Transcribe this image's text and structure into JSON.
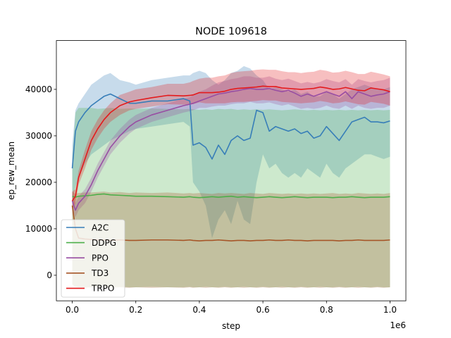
{
  "chart_data": {
    "type": "line",
    "title": "NODE 109618",
    "xlabel": "step",
    "ylabel": "ep_rew_mean",
    "x_offset_label": "1e6",
    "xlim": [
      -0.05,
      1.05
    ],
    "ylim": [
      -5500,
      50500
    ],
    "x_ticks": [
      0.0,
      0.2,
      0.4,
      0.6,
      0.8,
      1.0
    ],
    "x_tick_labels": [
      "0.0",
      "0.2",
      "0.4",
      "0.6",
      "0.8",
      "1.0"
    ],
    "y_ticks": [
      0,
      10000,
      20000,
      30000,
      40000
    ],
    "y_tick_labels": [
      "0",
      "10000",
      "20000",
      "30000",
      "40000"
    ],
    "grid": false,
    "legend_position": "lower-left",
    "x": [
      0.0,
      0.01,
      0.02,
      0.04,
      0.06,
      0.08,
      0.1,
      0.12,
      0.15,
      0.18,
      0.2,
      0.25,
      0.3,
      0.35,
      0.37,
      0.38,
      0.4,
      0.42,
      0.44,
      0.46,
      0.48,
      0.5,
      0.52,
      0.54,
      0.56,
      0.58,
      0.6,
      0.62,
      0.64,
      0.66,
      0.68,
      0.7,
      0.72,
      0.74,
      0.76,
      0.78,
      0.8,
      0.82,
      0.84,
      0.86,
      0.88,
      0.9,
      0.92,
      0.94,
      0.96,
      0.98,
      1.0
    ],
    "series": [
      {
        "name": "A2C",
        "color": "#377eb8",
        "values": [
          23000,
          31000,
          33000,
          35000,
          36500,
          37500,
          38500,
          39000,
          38000,
          37000,
          37000,
          37500,
          37500,
          38000,
          37500,
          28000,
          28500,
          27500,
          25000,
          28000,
          26000,
          29000,
          30000,
          29000,
          29500,
          35500,
          35000,
          31000,
          32000,
          31500,
          31000,
          31500,
          30500,
          31000,
          29500,
          30000,
          32000,
          30500,
          29000,
          31000,
          33000,
          33500,
          34000,
          33000,
          33000,
          32800,
          33200
        ],
        "lower": [
          16000,
          19000,
          21000,
          24000,
          26000,
          27000,
          28000,
          29000,
          30000,
          31000,
          31500,
          32000,
          32500,
          33000,
          32000,
          20000,
          18000,
          15000,
          8000,
          12000,
          14000,
          11000,
          16000,
          12000,
          11000,
          20000,
          26000,
          23000,
          24000,
          22000,
          21000,
          22000,
          21000,
          23000,
          22000,
          21000,
          24000,
          22000,
          21000,
          23000,
          24000,
          25000,
          26000,
          26000,
          25500,
          25000,
          25500
        ],
        "upper": [
          28000,
          35500,
          37000,
          39000,
          41000,
          42000,
          43000,
          43500,
          42000,
          41500,
          41000,
          42000,
          42500,
          43000,
          43000,
          43500,
          44000,
          43500,
          42000,
          41000,
          42000,
          43500,
          44000,
          45000,
          44500,
          43000,
          42000,
          40000,
          40500,
          40000,
          39500,
          40000,
          39000,
          39500,
          38500,
          38500,
          39500,
          39000,
          38000,
          39000,
          40000,
          40500,
          41000,
          40500,
          40000,
          40000,
          40500
        ]
      },
      {
        "name": "DDPG",
        "color": "#4daf4a",
        "values": [
          17000,
          16800,
          17000,
          17100,
          17200,
          17400,
          17500,
          17300,
          17200,
          17100,
          17000,
          17000,
          16900,
          16800,
          16900,
          16800,
          16700,
          16800,
          16900,
          16800,
          16900,
          17000,
          16800,
          16900,
          16800,
          16700,
          16800,
          16900,
          16800,
          16700,
          16800,
          16900,
          16800,
          16700,
          16800,
          16800,
          16800,
          16700,
          16800,
          16800,
          16900,
          16800,
          16700,
          16800,
          16800,
          16800,
          16900
        ],
        "lower": [
          -2000,
          -2500,
          -2600,
          -2600,
          -2600,
          -2500,
          -2600,
          -2600,
          -2500,
          -2600,
          -2600,
          -2500,
          -2600,
          -2600,
          -2500,
          -2600,
          -2600,
          -2500,
          -2600,
          -2600,
          -2500,
          -2600,
          -2600,
          -2500,
          -2600,
          -2600,
          -2500,
          -2600,
          -2600,
          -2500,
          -2600,
          -2600,
          -2500,
          -2600,
          -2600,
          -2500,
          -2600,
          -2600,
          -2500,
          -2600,
          -2600,
          -2500,
          -2600,
          -2600,
          -2500,
          -2600,
          -2600
        ],
        "upper": [
          25000,
          35000,
          36000,
          36000,
          36000,
          35800,
          35900,
          36000,
          35800,
          35900,
          35800,
          35900,
          35800,
          35700,
          35800,
          35700,
          35600,
          35700,
          35600,
          35800,
          35700,
          35800,
          35600,
          35700,
          35600,
          35700,
          35600,
          35700,
          35600,
          35500,
          35600,
          35700,
          35600,
          35500,
          35600,
          35500,
          35600,
          35500,
          35600,
          35500,
          35600,
          35500,
          35600,
          35500,
          35600,
          35500,
          35600
        ]
      },
      {
        "name": "PPO",
        "color": "#984ea3",
        "values": [
          16000,
          14000,
          15500,
          17000,
          19500,
          22500,
          25000,
          27500,
          30000,
          32000,
          33000,
          34500,
          35500,
          36500,
          36800,
          37000,
          37500,
          38000,
          38500,
          39000,
          39200,
          39500,
          39700,
          40000,
          40200,
          40000,
          40000,
          40200,
          39800,
          39500,
          39800,
          39200,
          38500,
          39000,
          38500,
          39000,
          39500,
          39000,
          38500,
          39500,
          38000,
          39500,
          39000,
          38500,
          38800,
          39000,
          39500
        ],
        "lower": [
          14000,
          12500,
          14000,
          15500,
          18000,
          21000,
          23500,
          26000,
          28500,
          30500,
          31500,
          33000,
          34000,
          35000,
          35300,
          35500,
          36000,
          36000,
          36300,
          36500,
          36500,
          36800,
          37000,
          37000,
          37300,
          37000,
          37000,
          37200,
          36800,
          36500,
          36800,
          36300,
          35800,
          36000,
          35800,
          36000,
          36500,
          36000,
          35800,
          36500,
          35800,
          36500,
          36000,
          35800,
          36000,
          36000,
          36500
        ],
        "upper": [
          18000,
          15500,
          17000,
          18500,
          21000,
          24000,
          26500,
          29000,
          31500,
          33500,
          34500,
          36000,
          37000,
          38000,
          38300,
          38800,
          39500,
          40000,
          40800,
          41500,
          41800,
          42200,
          42400,
          42800,
          42800,
          42500,
          42500,
          42800,
          42300,
          42000,
          42300,
          41800,
          41300,
          41600,
          41300,
          41600,
          42200,
          41800,
          41500,
          42200,
          41000,
          42200,
          41800,
          41500,
          41800,
          42000,
          42500
        ]
      },
      {
        "name": "TD3",
        "color": "#a65628",
        "values": [
          15000,
          10000,
          8000,
          7800,
          7700,
          7600,
          7600,
          7500,
          7600,
          7500,
          7500,
          7600,
          7600,
          7500,
          7600,
          7500,
          7400,
          7500,
          7500,
          7600,
          7500,
          7400,
          7500,
          7500,
          7400,
          7500,
          7500,
          7600,
          7500,
          7500,
          7600,
          7500,
          7500,
          7400,
          7500,
          7500,
          7500,
          7500,
          7400,
          7500,
          7500,
          7600,
          7500,
          7500,
          7500,
          7500,
          7600
        ],
        "lower": [
          -2000,
          -2500,
          -2600,
          -2700,
          -2600,
          -2700,
          -2600,
          -2700,
          -2600,
          -2700,
          -2600,
          -2700,
          -2600,
          -2700,
          -2600,
          -2700,
          -2600,
          -2700,
          -2600,
          -2700,
          -2600,
          -2700,
          -2600,
          -2700,
          -2600,
          -2700,
          -2600,
          -2700,
          -2600,
          -2700,
          -2600,
          -2700,
          -2600,
          -2700,
          -2600,
          -2700,
          -2600,
          -2700,
          -2600,
          -2700,
          -2600,
          -2700,
          -2600,
          -2700,
          -2600,
          -2700,
          -2600
        ],
        "upper": [
          18000,
          17500,
          17700,
          17800,
          17800,
          17900,
          18000,
          17800,
          17900,
          17700,
          17800,
          17700,
          17800,
          17600,
          17700,
          17600,
          17700,
          17600,
          17500,
          17700,
          17600,
          17700,
          17600,
          17500,
          17700,
          17600,
          17500,
          17700,
          17600,
          17500,
          17600,
          17500,
          17600,
          17500,
          17600,
          17500,
          17600,
          17700,
          17500,
          17600,
          17500,
          17700,
          17600,
          17500,
          17600,
          17500,
          17700
        ]
      },
      {
        "name": "TRPO",
        "color": "#e41a1c",
        "values": [
          16000,
          17000,
          21000,
          25000,
          29000,
          31500,
          33500,
          35000,
          36500,
          37300,
          37600,
          38200,
          38700,
          38600,
          38700,
          38800,
          39300,
          39300,
          39300,
          39400,
          39600,
          40000,
          40200,
          40300,
          40400,
          40500,
          40700,
          40600,
          40600,
          40300,
          40200,
          40100,
          40000,
          40100,
          40200,
          40500,
          40300,
          40000,
          40100,
          40400,
          40100,
          39800,
          39700,
          40300,
          40100,
          39900,
          39500
        ],
        "lower": [
          14000,
          15500,
          19500,
          23000,
          27000,
          29500,
          31500,
          33000,
          34500,
          35500,
          35800,
          36300,
          36800,
          36700,
          36800,
          36800,
          37200,
          37000,
          37000,
          37000,
          37000,
          37200,
          37300,
          37300,
          37400,
          37500,
          37700,
          37600,
          37600,
          37300,
          37200,
          37100,
          37000,
          37100,
          37200,
          37500,
          37300,
          37000,
          37100,
          37400,
          37100,
          36800,
          36700,
          37300,
          37100,
          36900,
          36500
        ],
        "upper": [
          18000,
          18500,
          22500,
          27000,
          31000,
          33500,
          35500,
          37000,
          38800,
          39500,
          40000,
          40500,
          41200,
          41200,
          41500,
          41800,
          42300,
          42500,
          42500,
          42800,
          43000,
          43500,
          43800,
          43900,
          44000,
          44200,
          44300,
          44200,
          44200,
          43900,
          43700,
          43700,
          43500,
          43700,
          43800,
          44200,
          44000,
          43600,
          43700,
          44000,
          43700,
          43300,
          43300,
          43800,
          43500,
          43200,
          42800
        ]
      }
    ]
  }
}
